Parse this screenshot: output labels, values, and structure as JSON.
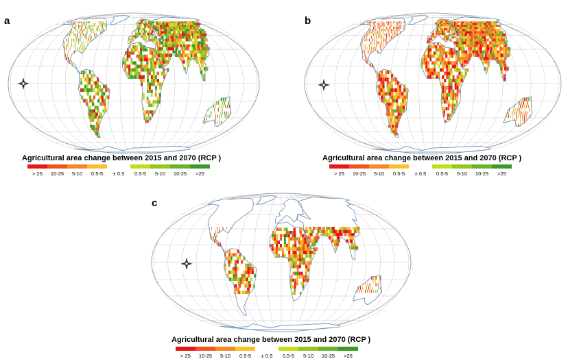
{
  "panels": [
    {
      "letter": "a",
      "legend_title": "Agricultural area change between 2015 and 2070 (RCP    )",
      "tone": "mixed"
    },
    {
      "letter": "b",
      "legend_title": "Agricultural area change between 2015 and 2070 (RCP    )",
      "tone": "loss"
    },
    {
      "letter": "c",
      "legend_title": "Agricultural area change between 2015 and 2070 (RCP    )",
      "tone": "tropical-loss"
    }
  ],
  "legend": {
    "loss": [
      {
        "label": "> 25",
        "color": "#e8161b"
      },
      {
        "label": "10-25",
        "color": "#f0531f"
      },
      {
        "label": "5-10",
        "color": "#f48a27"
      },
      {
        "label": "0.5-5",
        "color": "#fbbf2d"
      }
    ],
    "neutral_label": "± 0.5",
    "gain": [
      {
        "label": "0.5-5",
        "color": "#c5dc1e"
      },
      {
        "label": "5-10",
        "color": "#97c61f"
      },
      {
        "label": "10-25",
        "color": "#6cb22a"
      },
      {
        "label": ">25",
        "color": "#3c9a2c"
      }
    ]
  },
  "colors": {
    "coast": "#6a8fb5",
    "graticule": "#b8b8b8",
    "outline": "#8c8c8c",
    "compass": "#333333"
  }
}
